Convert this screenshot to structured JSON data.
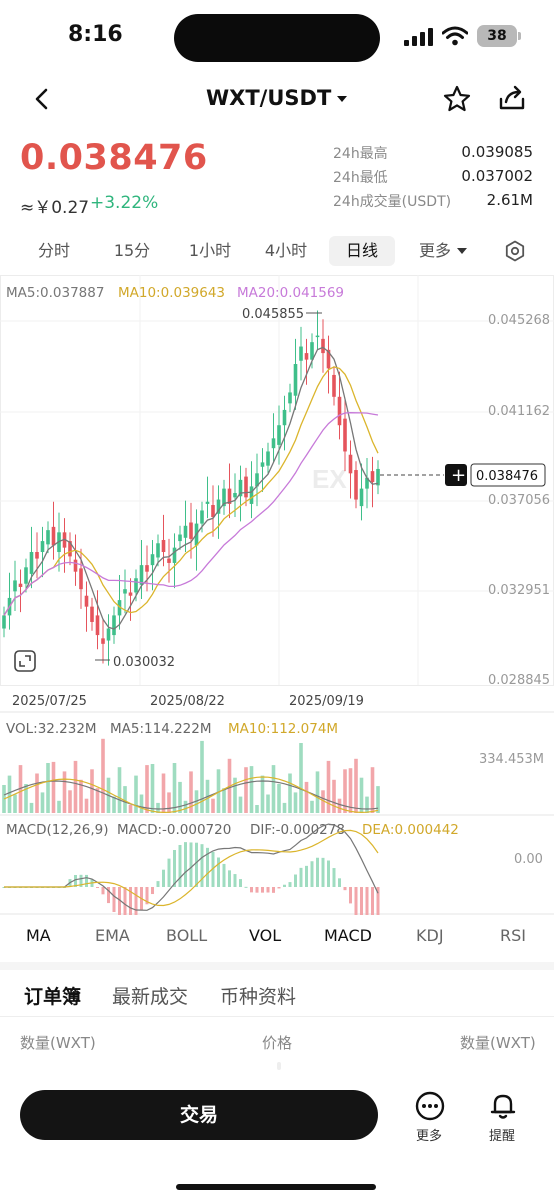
{
  "status": {
    "time": "8:16",
    "battery": "38"
  },
  "header": {
    "pair": "WXT/USDT"
  },
  "ticker": {
    "price": "0.038476",
    "cny": "≈￥0.27",
    "change": "+3.22%",
    "stats": [
      {
        "label": "24h最高",
        "value": "0.039085"
      },
      {
        "label": "24h最低",
        "value": "0.037002"
      },
      {
        "label": "24h成交量(USDT)",
        "value": "2.61M"
      }
    ]
  },
  "timeframes": {
    "items": [
      "分时",
      "15分",
      "1小时",
      "4小时",
      "日线"
    ],
    "more": "更多",
    "active": "日线"
  },
  "chart_data": {
    "type": "candlestick",
    "ma_legend": {
      "ma5": "MA5:0.037887",
      "ma10": "MA10:0.039643",
      "ma20": "MA20:0.041569"
    },
    "y_ticks": [
      "0.045268",
      "0.041162",
      "0.037056",
      "0.032951",
      "0.028845"
    ],
    "x_ticks": [
      "2025/07/25",
      "2025/08/22",
      "2025/09/19"
    ],
    "high_label": "0.045855",
    "low_label": "0.030032",
    "last_price": "0.038476",
    "watermark": "EX",
    "ylim": [
      0.028845,
      0.045268
    ],
    "colors": {
      "up": "#3fbf8a",
      "down": "#e5545c",
      "ma5": "#777777",
      "ma10": "#dbb52c",
      "ma20": "#c77ad9"
    },
    "vol_legend": {
      "vol": "VOL:32.232M",
      "ma5": "MA5:114.222M",
      "ma10": "MA10:112.074M"
    },
    "vol_max": "334.453M",
    "macd_legend": {
      "params": "MACD(12,26,9)",
      "macd": "MACD:-0.000720",
      "dif": "DIF:-0.000278",
      "dea": "DEA:0.000442"
    },
    "macd_zero": "0.00"
  },
  "indicators": [
    "MA",
    "EMA",
    "BOLL",
    "VOL",
    "MACD",
    "KDJ",
    "RSI"
  ],
  "orderbook": {
    "tabs": [
      "订单簿",
      "最新成交",
      "币种资料"
    ],
    "headers": {
      "qty_left": "数量(WXT)",
      "price": "价格",
      "qty_right": "数量(WXT)"
    }
  },
  "bottom": {
    "trade": "交易",
    "more": "更多",
    "alert": "提醒"
  }
}
